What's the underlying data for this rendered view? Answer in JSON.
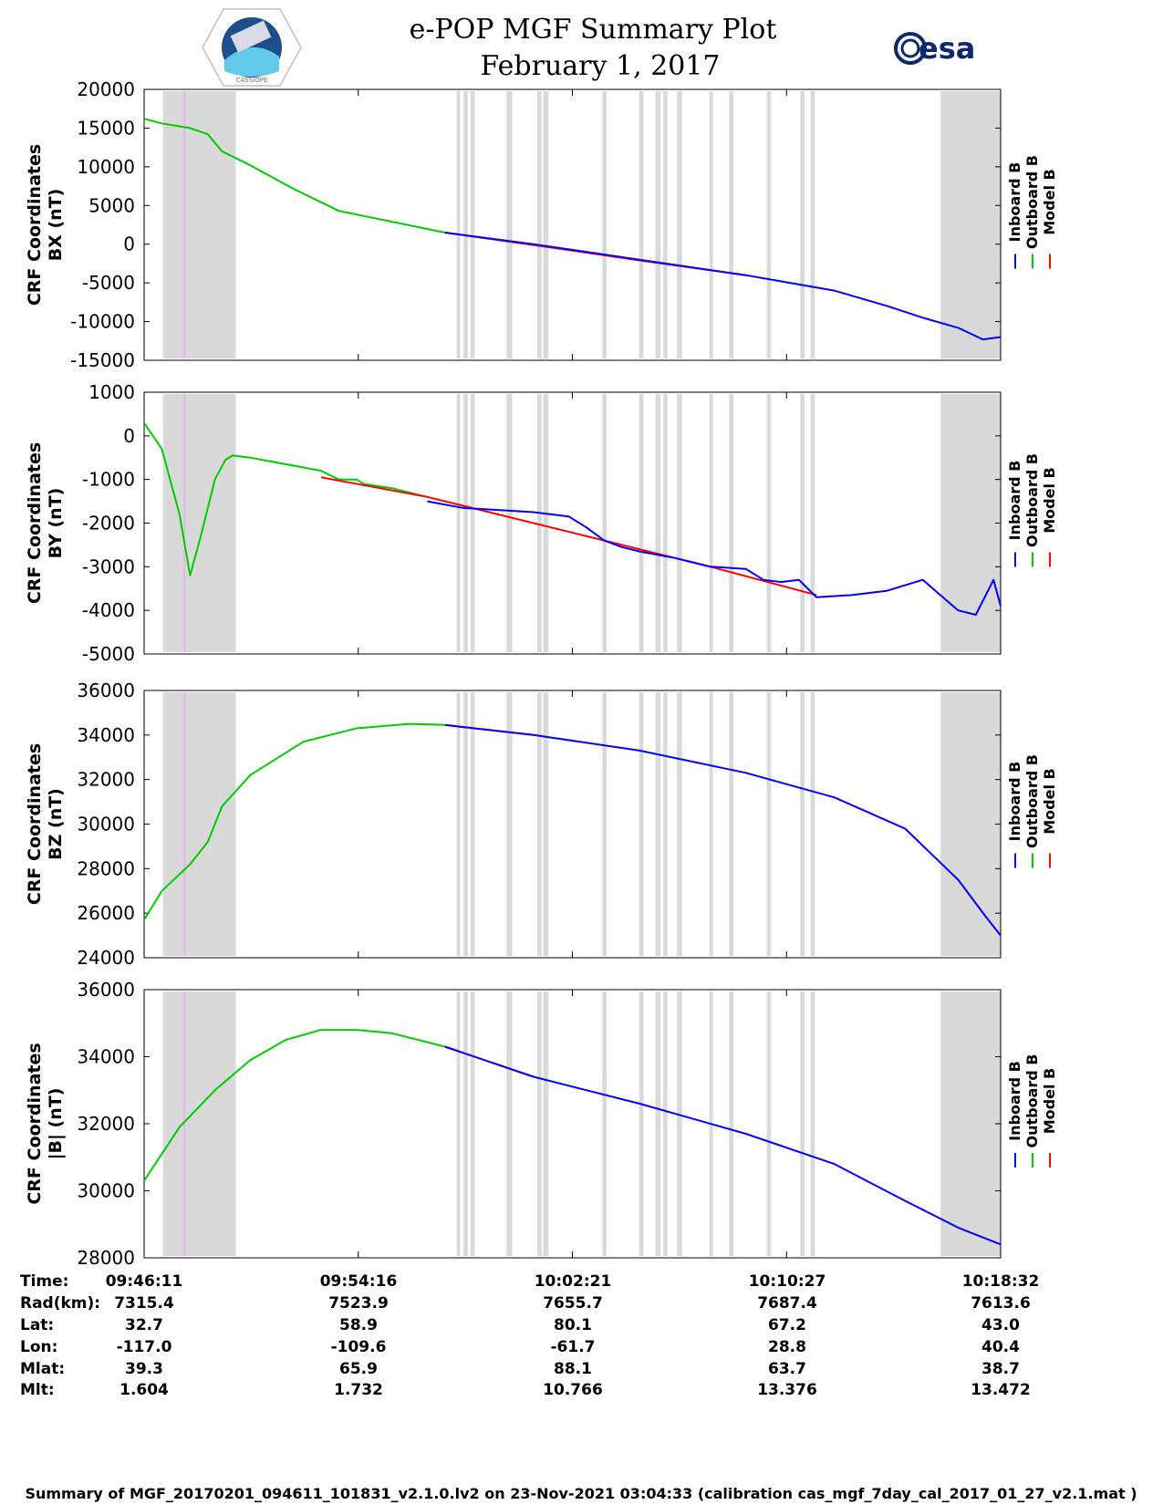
{
  "header": {
    "title_line1": "e-POP MGF Summary Plot",
    "title_line2": "February 1, 2017",
    "left_logo": "cassiope-satellite-logo",
    "left_logo_text": "CASSIOPE",
    "right_logo_text": "esa"
  },
  "colors": {
    "inboard": "#0000ff",
    "outboard": "#00cc00",
    "model": "#ff0000",
    "gap_shading": "#d9d9d9"
  },
  "legend": [
    "Inboard B",
    "Outboard B",
    "Model B"
  ],
  "gaps_fraction": [
    [
      0.045,
      0.22
    ],
    [
      0.73,
      0.735
    ],
    [
      0.76,
      0.765
    ],
    [
      0.765,
      0.77
    ],
    [
      0.77,
      0.775
    ],
    [
      0.8,
      0.81
    ],
    [
      0.84,
      0.85
    ],
    [
      0.85,
      0.86
    ],
    [
      0.88,
      0.885
    ],
    [
      0.9,
      0.905
    ],
    [
      0.91,
      0.915
    ],
    [
      0.915,
      0.92
    ],
    [
      0.935,
      0.94
    ],
    [
      0.945,
      0.95
    ],
    [
      0.95,
      0.955
    ],
    [
      0.97,
      0.975
    ],
    [
      0.98,
      0.985
    ],
    [
      0.992,
      0.997
    ],
    [
      0.935,
      1.0
    ]
  ],
  "chart_data": [
    {
      "type": "line",
      "ylabel_line1": "CRF Coordinates",
      "ylabel_line2": "BX (nT)",
      "ylim": [
        -15000,
        20000
      ],
      "yticks": [
        "20000",
        "15000",
        "10000",
        "5000",
        "0",
        "-5000",
        "-10000",
        "-15000"
      ],
      "series": [
        {
          "name": "Outboard B",
          "x": [
            0,
            0.05,
            0.13,
            0.18,
            0.22,
            0.3,
            0.42,
            0.55,
            0.85
          ],
          "values": [
            16200,
            15600,
            15000,
            14200,
            12000,
            10200,
            7200,
            4300,
            1500
          ]
        },
        {
          "name": "Inboard B",
          "x": [
            0.85,
            1.1,
            1.4,
            1.7,
            1.95,
            2.1,
            2.2,
            2.3,
            2.37,
            2.42
          ],
          "values": [
            1500,
            0,
            -2000,
            -4000,
            -6000,
            -8000,
            -9500,
            -10800,
            -12300,
            -12000
          ]
        },
        {
          "name": "Model B",
          "x": [
            0.85,
            1.1,
            1.4,
            1.7
          ],
          "values": [
            1500,
            -100,
            -2100,
            -4000
          ]
        }
      ]
    },
    {
      "type": "line",
      "ylabel_line1": "CRF Coordinates",
      "ylabel_line2": "BY (nT)",
      "ylim": [
        -5000,
        1000
      ],
      "yticks": [
        "1000",
        "0",
        "-1000",
        "-2000",
        "-3000",
        "-4000",
        "-5000"
      ],
      "series": [
        {
          "name": "Outboard B",
          "x": [
            0,
            0.05,
            0.1,
            0.13,
            0.16,
            0.2,
            0.23,
            0.25,
            0.3,
            0.4,
            0.5,
            0.55,
            0.6,
            0.62,
            0.7,
            0.8
          ],
          "values": [
            300,
            -300,
            -1800,
            -3200,
            -2300,
            -1000,
            -550,
            -450,
            -500,
            -650,
            -800,
            -1000,
            -1000,
            -1100,
            -1200,
            -1400
          ]
        },
        {
          "name": "Inboard B",
          "x": [
            0.8,
            0.9,
            1.0,
            1.1,
            1.2,
            1.25,
            1.3,
            1.35,
            1.4,
            1.5,
            1.6,
            1.7,
            1.75,
            1.8,
            1.85,
            1.9,
            2.0,
            2.1,
            2.2,
            2.3,
            2.35,
            2.4,
            2.42
          ],
          "values": [
            -1500,
            -1650,
            -1700,
            -1750,
            -1850,
            -2100,
            -2400,
            -2550,
            -2650,
            -2800,
            -3000,
            -3050,
            -3300,
            -3350,
            -3300,
            -3700,
            -3650,
            -3550,
            -3300,
            -4000,
            -4100,
            -3300,
            -3900
          ]
        },
        {
          "name": "Model B",
          "x": [
            0.5,
            0.8,
            1.3,
            1.6,
            1.9
          ],
          "values": [
            -950,
            -1400,
            -2400,
            -3000,
            -3650
          ]
        }
      ]
    },
    {
      "type": "line",
      "ylabel_line1": "CRF Coordinates",
      "ylabel_line2": "BZ (nT)",
      "ylim": [
        24000,
        36000
      ],
      "yticks": [
        "36000",
        "34000",
        "32000",
        "30000",
        "28000",
        "26000",
        "24000"
      ],
      "series": [
        {
          "name": "Outboard B",
          "x": [
            0,
            0.05,
            0.13,
            0.18,
            0.22,
            0.3,
            0.45,
            0.6,
            0.75,
            0.85
          ],
          "values": [
            25700,
            27000,
            28200,
            29200,
            30800,
            32200,
            33700,
            34300,
            34500,
            34450
          ]
        },
        {
          "name": "Inboard B",
          "x": [
            0.85,
            1.1,
            1.4,
            1.7,
            1.95,
            2.15,
            2.3,
            2.38,
            2.42
          ],
          "values": [
            34450,
            34000,
            33300,
            32300,
            31200,
            29800,
            27500,
            25800,
            25000
          ]
        },
        {
          "name": "Model B",
          "x": [
            0.85,
            1.1
          ],
          "values": [
            34450,
            34000
          ]
        }
      ]
    },
    {
      "type": "line",
      "ylabel_line1": "CRF Coordinates",
      "ylabel_line2": "|B| (nT)",
      "ylim": [
        28000,
        36000
      ],
      "yticks": [
        "36000",
        "34000",
        "32000",
        "30000",
        "28000"
      ],
      "series": [
        {
          "name": "Outboard B",
          "x": [
            0,
            0.1,
            0.2,
            0.3,
            0.4,
            0.5,
            0.6,
            0.7,
            0.85
          ],
          "values": [
            30300,
            31900,
            33000,
            33900,
            34500,
            34800,
            34800,
            34700,
            34300
          ]
        },
        {
          "name": "Inboard B",
          "x": [
            0.85,
            1.1,
            1.4,
            1.7,
            1.95,
            2.15,
            2.3,
            2.42
          ],
          "values": [
            34300,
            33400,
            32600,
            31700,
            30800,
            29700,
            28900,
            28400
          ]
        },
        {
          "name": "Model B",
          "x": [
            0.85,
            1.1
          ],
          "values": [
            34300,
            33400
          ]
        }
      ]
    }
  ],
  "xaxis": {
    "row_labels": [
      "Time:",
      "Rad(km):",
      "Lat:",
      "Lon:",
      "Mlat:",
      "Mlt:"
    ],
    "columns": [
      [
        "09:46:11",
        "7315.4",
        "32.7",
        "-117.0",
        "39.3",
        "1.604"
      ],
      [
        "09:54:16",
        "7523.9",
        "58.9",
        "-109.6",
        "65.9",
        "1.732"
      ],
      [
        "10:02:21",
        "7655.7",
        "80.1",
        "-61.7",
        "88.1",
        "10.766"
      ],
      [
        "10:10:27",
        "7687.4",
        "67.2",
        "28.8",
        "63.7",
        "13.376"
      ],
      [
        "10:18:32",
        "7613.6",
        "43.0",
        "40.4",
        "38.7",
        "13.472"
      ]
    ]
  },
  "footer": "Summary of MGF_20170201_094611_101831_v2.1.0.lv2 on 23-Nov-2021 03:04:33 (calibration cas_mgf_7day_cal_2017_01_27_v2.1.mat )"
}
